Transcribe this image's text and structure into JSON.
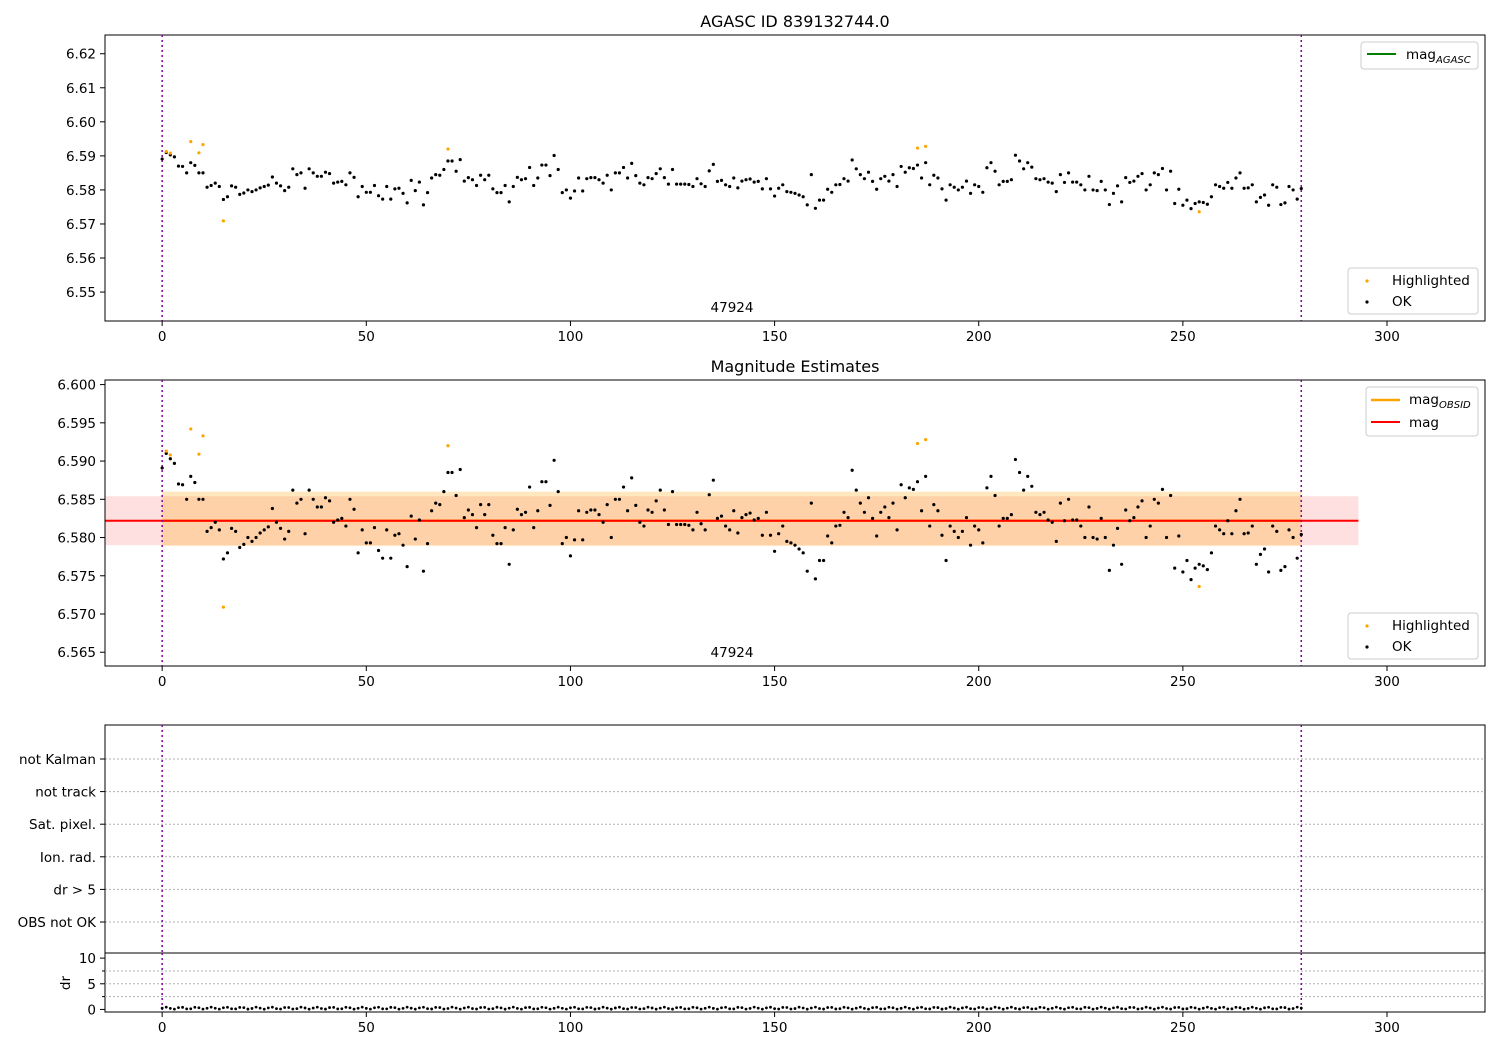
{
  "colors": {
    "ok": "#000000",
    "highlighted": "#ffa500",
    "agasc_line": "#008000",
    "obsid_line": "#ffa500",
    "mag_line": "#ff0000",
    "vline": "#8000a0"
  },
  "chart_data": [
    {
      "type": "scatter",
      "title": "AGASC ID 839132744.0",
      "annotation": "47924",
      "xlim": [
        -14,
        324
      ],
      "ylim": [
        6.5415,
        6.6255
      ],
      "xticks": [
        "0",
        "50",
        "100",
        "150",
        "200",
        "250",
        "300"
      ],
      "yticks": [
        "6.55",
        "6.56",
        "6.57",
        "6.58",
        "6.59",
        "6.60",
        "6.61",
        "6.62"
      ],
      "vlines": [
        0,
        279
      ],
      "legend_top": [
        {
          "label": "mag",
          "sub": "AGASC"
        }
      ],
      "legend_bottom": [
        {
          "label": "Highlighted"
        },
        {
          "label": "OK"
        }
      ],
      "highlighted_points": [
        {
          "x": 1,
          "y": 6.5913
        },
        {
          "x": 2,
          "y": 6.5908
        },
        {
          "x": 7,
          "y": 6.5942
        },
        {
          "x": 9,
          "y": 6.5909
        },
        {
          "x": 10,
          "y": 6.5933
        },
        {
          "x": 15,
          "y": 6.5709
        },
        {
          "x": 70,
          "y": 6.592
        },
        {
          "x": 185,
          "y": 6.5923
        },
        {
          "x": 187,
          "y": 6.5928
        },
        {
          "x": 254,
          "y": 6.5736
        }
      ]
    },
    {
      "type": "scatter",
      "title": "Magnitude Estimates",
      "annotation": "47924",
      "xlim": [
        -14,
        324
      ],
      "ylim": [
        6.5632,
        6.6006
      ],
      "xticks": [
        "0",
        "50",
        "100",
        "150",
        "200",
        "250",
        "300"
      ],
      "yticks": [
        "6.565",
        "6.570",
        "6.575",
        "6.580",
        "6.585",
        "6.590",
        "6.595",
        "6.600"
      ],
      "vlines": [
        0,
        279
      ],
      "mag": 6.5822,
      "mag_band": [
        6.579,
        6.5854
      ],
      "mag_band_extent": [
        -14,
        293
      ],
      "mag_obsid": 6.5822,
      "obsid_band": [
        6.5789,
        6.586
      ],
      "obsid_band_extent": [
        0,
        279
      ],
      "legend_top": [
        {
          "label": "mag",
          "sub": "OBSID"
        },
        {
          "label": "mag"
        }
      ],
      "legend_bottom": [
        {
          "label": "Highlighted"
        },
        {
          "label": "OK"
        }
      ]
    },
    {
      "type": "flags",
      "xlim": [
        -14,
        324
      ],
      "categories": [
        "not Kalman",
        "not track",
        "Sat. pixel.",
        "Ion. rad.",
        "dr > 5",
        "OBS not OK"
      ],
      "vlines": [
        0,
        279
      ]
    },
    {
      "type": "scatter",
      "ylabel": "dr",
      "xlim": [
        -14,
        324
      ],
      "ylim": [
        -0.5,
        11
      ],
      "xticks": [
        "0",
        "50",
        "100",
        "150",
        "200",
        "250",
        "300"
      ],
      "yticks": [
        "0",
        "5",
        "10"
      ],
      "vlines": [
        0,
        279
      ],
      "dr_points": "0-279 at ~0.3",
      "dr_values": {
        "min": 0.05,
        "max": 0.45
      }
    }
  ],
  "ok_series": {
    "x_start": 0,
    "y": [
      6.5891,
      6.591,
      6.5903,
      6.5897,
      6.587,
      6.5869,
      6.585,
      6.588,
      6.5872,
      6.585,
      6.585,
      6.5808,
      6.5813,
      6.582,
      6.581,
      6.5772,
      6.578,
      6.5812,
      6.5808,
      6.5787,
      6.5791,
      6.58,
      6.5795,
      6.58,
      6.5806,
      6.581,
      6.5814,
      6.5838,
      6.582,
      6.5812,
      6.5798,
      6.5808,
      6.5862,
      6.5845,
      6.585,
      6.5805,
      6.5862,
      6.585,
      6.584,
      6.584,
      6.5852,
      6.5848,
      6.582,
      6.5823,
      6.5825,
      6.5815,
      6.585,
      6.5837,
      6.578,
      6.581,
      6.5793,
      6.5793,
      6.5813,
      6.5783,
      6.5773,
      6.581,
      6.5773,
      6.5803,
      6.5805,
      6.579,
      6.5762,
      6.5828,
      6.5798,
      6.5823,
      6.5756,
      6.5792,
      6.5835,
      6.5845,
      6.5843,
      6.586,
      6.5885,
      6.5885,
      6.5855,
      6.5889,
      6.5826,
      6.5836,
      6.583,
      6.5813,
      6.5843,
      6.583,
      6.5843,
      6.5803,
      6.5792,
      6.5792,
      6.5813,
      6.5765,
      6.581,
      6.5837,
      6.583,
      6.5833,
      6.5866,
      6.5813,
      6.5835,
      6.5873,
      6.5873,
      6.5842,
      6.5901,
      6.586,
      6.5792,
      6.58,
      6.5776,
      6.5797,
      6.5835,
      6.5797,
      6.5833,
      6.5836,
      6.5836,
      6.583,
      6.582,
      6.5843,
      6.58,
      6.585,
      6.585,
      6.5866,
      6.5835,
      6.5878,
      6.5842,
      6.582,
      6.5815,
      6.5836,
      6.5833,
      6.5848,
      6.5862,
      6.5836,
      6.5817,
      6.586,
      6.5817,
      6.5817,
      6.5817,
      6.5816,
      6.581,
      6.5833,
      6.5818,
      6.581,
      6.5856,
      6.5875,
      6.5825,
      6.5828,
      6.5815,
      6.581,
      6.5835,
      6.5806,
      6.5826,
      6.583,
      6.5832,
      6.5823,
      6.5825,
      6.5803,
      6.5833,
      6.5803,
      6.5782,
      6.5805,
      6.5815,
      6.5795,
      6.5793,
      6.579,
      6.5785,
      6.578,
      6.5756,
      6.5845,
      6.5746,
      6.577,
      6.577,
      6.5802,
      6.5793,
      6.5815,
      6.5816,
      6.5833,
      6.5826,
      6.5888,
      6.5862,
      6.5845,
      6.5833,
      6.5852,
      6.5825,
      6.5802,
      6.5833,
      6.584,
      6.5826,
      6.5845,
      6.581,
      6.5869,
      6.5852,
      6.5865,
      6.5863,
      6.5873,
      6.5835,
      6.588,
      6.5815,
      6.5843,
      6.5835,
      6.5803,
      6.577,
      6.5815,
      6.5808,
      6.58,
      6.5808,
      6.5826,
      6.579,
      6.5815,
      6.581,
      6.5793,
      6.5865,
      6.588,
      6.5855,
      6.5815,
      6.5825,
      6.5825,
      6.583,
      6.5902,
      6.5885,
      6.5862,
      6.588,
      6.5867,
      6.5833,
      6.583,
      6.5833,
      6.5823,
      6.582,
      6.5795,
      6.5845,
      6.5822,
      6.585,
      6.5823,
      6.5823,
      6.5815,
      6.58,
      6.584,
      6.58,
      6.5798,
      6.5825,
      6.58,
      6.5757,
      6.579,
      6.5812,
      6.5765,
      6.5836,
      6.5822,
      6.5826,
      6.584,
      6.5848,
      6.58,
      6.5815,
      6.585,
      6.5845,
      6.5863,
      6.58,
      6.5855,
      6.576,
      6.5802,
      6.5755,
      6.577,
      6.5745,
      6.576,
      6.5765,
      6.5763,
      6.5758,
      6.578,
      6.5815,
      6.581,
      6.5805,
      6.5822,
      6.5805,
      6.5835,
      6.585,
      6.5805,
      6.5806,
      6.5815,
      6.5765,
      6.5778,
      6.5785,
      6.5755,
      6.5815,
      6.5808,
      6.5757,
      6.5762,
      6.581,
      6.58,
      6.5773,
      6.5804
    ]
  }
}
